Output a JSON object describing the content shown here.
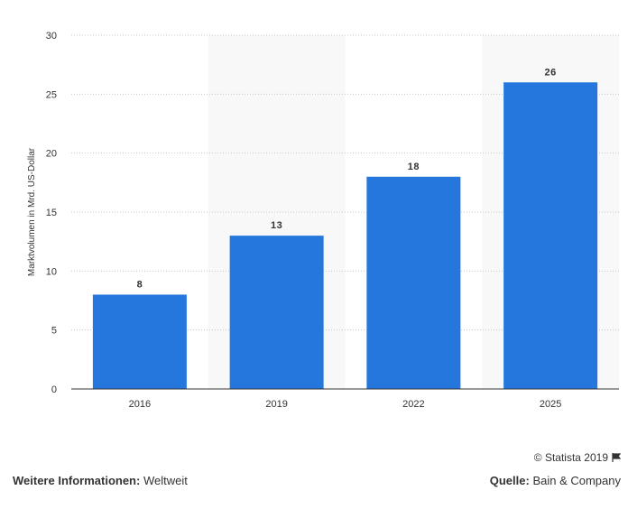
{
  "chart_data": {
    "type": "bar",
    "categories": [
      "2016",
      "2019",
      "2022",
      "2025"
    ],
    "values": [
      8,
      13,
      18,
      26
    ],
    "ylabel": "Marktvolumen in Mrd. US-Dollar",
    "ylim": [
      0,
      30
    ],
    "yticks": [
      0,
      5,
      10,
      15,
      20,
      25,
      30
    ],
    "grid": true,
    "bar_color": "#2677dd",
    "alt_band_color": "#f8f8f8"
  },
  "footer": {
    "credit": "© Statista 2019",
    "info_label": "Weitere Informationen:",
    "info_value": "Weltweit",
    "source_label": "Quelle:",
    "source_value": "Bain & Company"
  }
}
